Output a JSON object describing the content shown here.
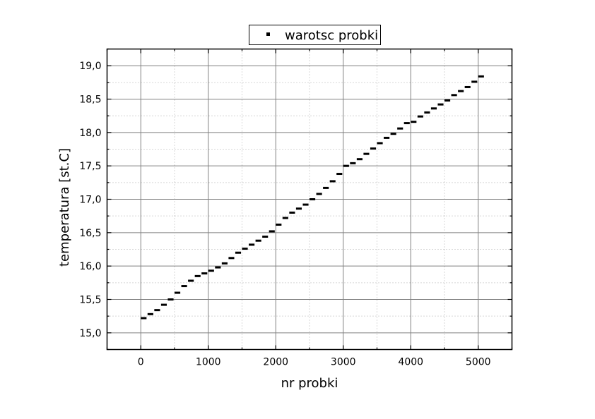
{
  "chart_data": {
    "type": "scatter",
    "title": "",
    "xlabel": "nr probki",
    "ylabel": "temperatura [st.C]",
    "xlim": [
      -500,
      5500
    ],
    "ylim": [
      14.75,
      19.25
    ],
    "x_ticks": [
      0,
      1000,
      2000,
      3000,
      4000,
      5000
    ],
    "x_tick_labels": [
      "0",
      "1000",
      "2000",
      "3000",
      "4000",
      "5000"
    ],
    "y_ticks": [
      15.0,
      15.5,
      16.0,
      16.5,
      17.0,
      17.5,
      18.0,
      18.5,
      19.0
    ],
    "y_tick_labels": [
      "15,0",
      "15,5",
      "16,0",
      "16,5",
      "17,0",
      "17,5",
      "18,0",
      "18,5",
      "19,0"
    ],
    "grid": true,
    "legend_position": "top-center",
    "series": [
      {
        "name": "warotsc probki",
        "color": "#000000",
        "marker": "square",
        "points": [
          [
            0,
            15.22
          ],
          [
            100,
            15.28
          ],
          [
            200,
            15.34
          ],
          [
            300,
            15.42
          ],
          [
            400,
            15.5
          ],
          [
            500,
            15.6
          ],
          [
            600,
            15.7
          ],
          [
            700,
            15.78
          ],
          [
            800,
            15.85
          ],
          [
            900,
            15.89
          ],
          [
            1000,
            15.93
          ],
          [
            1100,
            15.98
          ],
          [
            1200,
            16.04
          ],
          [
            1300,
            16.12
          ],
          [
            1400,
            16.2
          ],
          [
            1500,
            16.26
          ],
          [
            1600,
            16.32
          ],
          [
            1700,
            16.38
          ],
          [
            1800,
            16.44
          ],
          [
            1900,
            16.52
          ],
          [
            2000,
            16.62
          ],
          [
            2100,
            16.72
          ],
          [
            2200,
            16.8
          ],
          [
            2300,
            16.86
          ],
          [
            2400,
            16.92
          ],
          [
            2500,
            17.0
          ],
          [
            2600,
            17.08
          ],
          [
            2700,
            17.17
          ],
          [
            2800,
            17.27
          ],
          [
            2900,
            17.38
          ],
          [
            3000,
            17.5
          ],
          [
            3100,
            17.54
          ],
          [
            3200,
            17.6
          ],
          [
            3300,
            17.68
          ],
          [
            3400,
            17.76
          ],
          [
            3500,
            17.84
          ],
          [
            3600,
            17.92
          ],
          [
            3700,
            17.98
          ],
          [
            3800,
            18.06
          ],
          [
            3900,
            18.14
          ],
          [
            4000,
            18.16
          ],
          [
            4100,
            18.24
          ],
          [
            4200,
            18.3
          ],
          [
            4300,
            18.36
          ],
          [
            4400,
            18.42
          ],
          [
            4500,
            18.48
          ],
          [
            4600,
            18.56
          ],
          [
            4700,
            18.62
          ],
          [
            4800,
            18.68
          ],
          [
            4900,
            18.76
          ],
          [
            5000,
            18.84
          ]
        ]
      }
    ]
  }
}
